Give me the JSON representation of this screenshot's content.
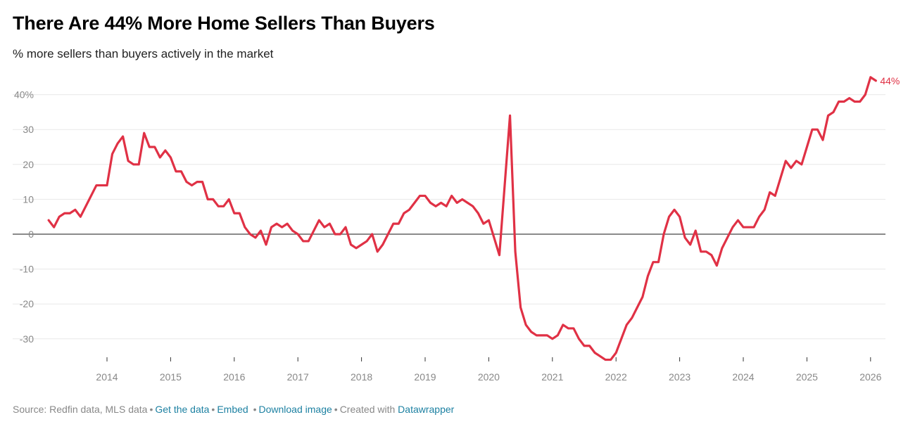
{
  "chart_data": {
    "type": "line",
    "title": "There Are 44% More Home Sellers Than Buyers",
    "subtitle": "% more sellers than buyers actively in the market",
    "xlabel": "",
    "ylabel": "",
    "start_month": "2013-02",
    "frequency": "monthly",
    "ylim": [
      -35,
      45
    ],
    "y_ticks": [
      40,
      30,
      20,
      10,
      0,
      -10,
      -20,
      -30
    ],
    "y_tick_labels": [
      "40%",
      "30",
      "20",
      "10",
      "0",
      "-10",
      "-20",
      "-30"
    ],
    "x_ticks": [
      "2014",
      "2015",
      "2016",
      "2017",
      "2018",
      "2019",
      "2020",
      "2021",
      "2022",
      "2023",
      "2024",
      "2025",
      "2026"
    ],
    "grid": true,
    "series": [
      {
        "name": "% more sellers than buyers",
        "color": "#e03145",
        "end_label": "44%",
        "values": [
          4,
          2,
          5,
          6,
          6,
          7,
          5,
          8,
          11,
          14,
          14,
          14,
          23,
          26,
          28,
          21,
          20,
          20,
          29,
          25,
          25,
          22,
          24,
          22,
          18,
          18,
          15,
          14,
          15,
          15,
          10,
          10,
          8,
          8,
          10,
          6,
          6,
          2,
          0,
          -1,
          1,
          -3,
          2,
          3,
          2,
          3,
          1,
          0,
          -2,
          -2,
          1,
          4,
          2,
          3,
          0,
          0,
          2,
          -3,
          -4,
          -3,
          -2,
          0,
          -5,
          -3,
          0,
          3,
          3,
          6,
          7,
          9,
          11,
          11,
          9,
          8,
          9,
          8,
          11,
          9,
          10,
          9,
          8,
          6,
          3,
          4,
          -1,
          -6,
          14,
          34,
          -5,
          -21,
          -26,
          -28,
          -29,
          -29,
          -29,
          -30,
          -29,
          -26,
          -27,
          -27,
          -30,
          -32,
          -32,
          -34,
          -35,
          -36,
          -36,
          -34,
          -30,
          -26,
          -24,
          -21,
          -18,
          -12,
          -8,
          -8,
          0,
          5,
          7,
          5,
          -1,
          -3,
          1,
          -5,
          -5,
          -6,
          -9,
          -4,
          -1,
          2,
          4,
          2,
          2,
          2,
          5,
          7,
          12,
          11,
          16,
          21,
          19,
          21,
          20,
          25,
          30,
          30,
          27,
          34,
          35,
          38,
          38,
          39,
          38,
          38,
          40,
          45,
          44
        ]
      }
    ]
  },
  "footer": {
    "source": "Source: Redfin data, MLS data",
    "get_data": "Get the data",
    "embed": "Embed",
    "download": "Download image",
    "created_with": "Created with",
    "datawrapper": "Datawrapper",
    "separator": "•"
  }
}
